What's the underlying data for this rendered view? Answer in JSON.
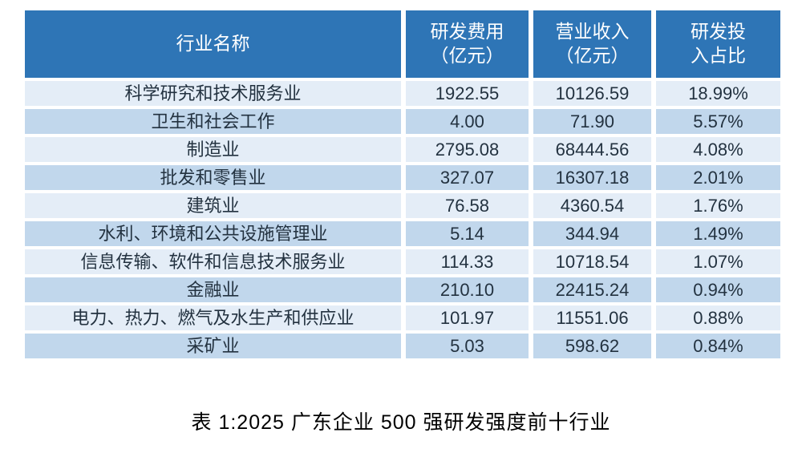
{
  "colors": {
    "page_bg": "#ffffff",
    "header_bg": "#2E75B6",
    "header_text": "#ffffff",
    "row_light": "#E4EDF7",
    "row_dark": "#C1D7EC",
    "cell_text": "#233240",
    "caption_text": "#000000"
  },
  "table": {
    "headers": {
      "industry": {
        "line1": "行业名称",
        "line2": ""
      },
      "rd": {
        "line1": "研发费用",
        "line2": "（亿元）"
      },
      "revenue": {
        "line1": "营业收入",
        "line2": "（亿元）"
      },
      "ratio": {
        "line1": "研发投",
        "line2": "入占比"
      }
    },
    "rows": [
      {
        "industry": "科学研究和技术服务业",
        "rd": "1922.55",
        "revenue": "10126.59",
        "ratio": "18.99%"
      },
      {
        "industry": "卫生和社会工作",
        "rd": "4.00",
        "revenue": "71.90",
        "ratio": "5.57%"
      },
      {
        "industry": "制造业",
        "rd": "2795.08",
        "revenue": "68444.56",
        "ratio": "4.08%"
      },
      {
        "industry": "批发和零售业",
        "rd": "327.07",
        "revenue": "16307.18",
        "ratio": "2.01%"
      },
      {
        "industry": "建筑业",
        "rd": "76.58",
        "revenue": "4360.54",
        "ratio": "1.76%"
      },
      {
        "industry": "水利、环境和公共设施管理业",
        "rd": "5.14",
        "revenue": "344.94",
        "ratio": "1.49%"
      },
      {
        "industry": "信息传输、软件和信息技术服务业",
        "rd": "114.33",
        "revenue": "10718.54",
        "ratio": "1.07%"
      },
      {
        "industry": "金融业",
        "rd": "210.10",
        "revenue": "22415.24",
        "ratio": "0.94%"
      },
      {
        "industry": "电力、热力、燃气及水生产和供应业",
        "rd": "101.97",
        "revenue": "11551.06",
        "ratio": "0.88%"
      },
      {
        "industry": "采矿业",
        "rd": "5.03",
        "revenue": "598.62",
        "ratio": "0.84%"
      }
    ]
  },
  "caption": "表 1:2025 广东企业 500 强研发强度前十行业",
  "chart_data": {
    "type": "table",
    "title": "表 1:2025 广东企业 500 强研发强度前十行业",
    "columns": [
      "行业名称",
      "研发费用（亿元）",
      "营业收入（亿元）",
      "研发投入占比"
    ],
    "rows": [
      [
        "科学研究和技术服务业",
        1922.55,
        10126.59,
        "18.99%"
      ],
      [
        "卫生和社会工作",
        4.0,
        71.9,
        "5.57%"
      ],
      [
        "制造业",
        2795.08,
        68444.56,
        "4.08%"
      ],
      [
        "批发和零售业",
        327.07,
        16307.18,
        "2.01%"
      ],
      [
        "建筑业",
        76.58,
        4360.54,
        "1.76%"
      ],
      [
        "水利、环境和公共设施管理业",
        5.14,
        344.94,
        "1.49%"
      ],
      [
        "信息传输、软件和信息技术服务业",
        114.33,
        10718.54,
        "1.07%"
      ],
      [
        "金融业",
        210.1,
        22415.24,
        "0.94%"
      ],
      [
        "电力、热力、燃气及水生产和供应业",
        101.97,
        11551.06,
        "0.88%"
      ],
      [
        "采矿业",
        5.03,
        598.62,
        "0.84%"
      ]
    ],
    "layout": {
      "banded_rows": true,
      "header_fill": "#2E75B6",
      "band_fills": [
        "#E4EDF7",
        "#C1D7EC"
      ]
    }
  }
}
